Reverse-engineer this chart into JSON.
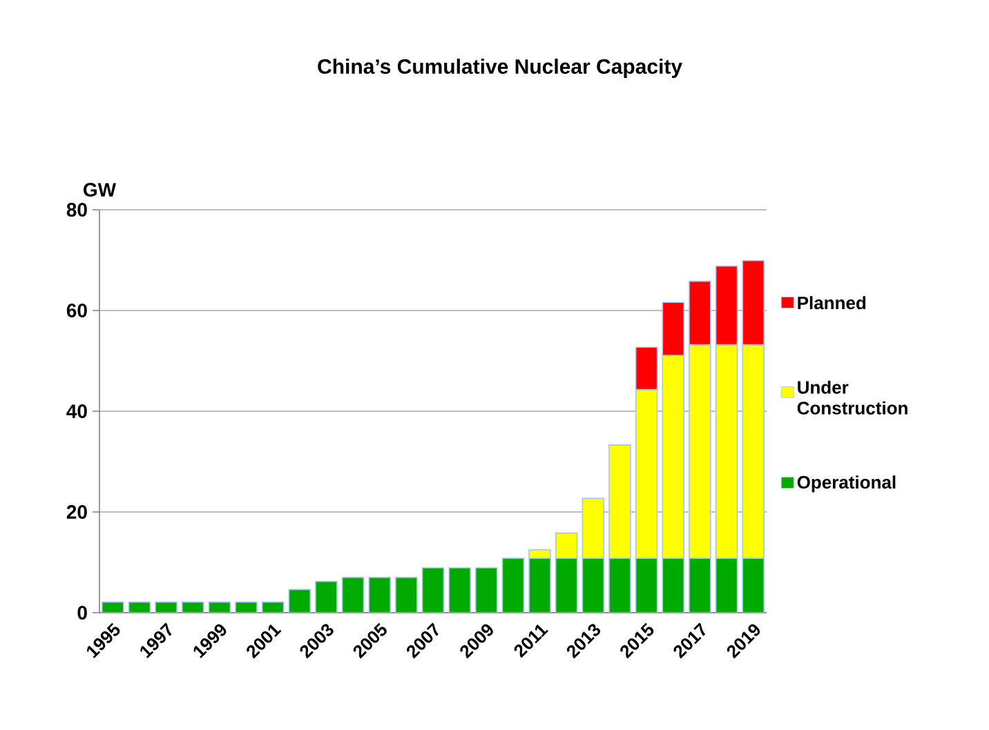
{
  "chart_data": {
    "type": "bar",
    "stacked": true,
    "title": "China’s Cumulative Nuclear Capacity",
    "ylabel": "GW",
    "categories": [
      "1995",
      null,
      "1997",
      null,
      "1999",
      null,
      "2001",
      null,
      "2003",
      null,
      "2005",
      null,
      "2007",
      null,
      "2009",
      null,
      "2011",
      null,
      "2013",
      null,
      "2015",
      null,
      "2017",
      null,
      "2019"
    ],
    "series": [
      {
        "name": "Operational",
        "color": "#00aa00",
        "values": [
          2.1,
          2.1,
          2.1,
          2.1,
          2.1,
          2.1,
          2.1,
          4.6,
          6.2,
          7.0,
          7.0,
          7.0,
          8.9,
          8.9,
          8.9,
          10.8,
          10.8,
          10.8,
          10.8,
          10.8,
          10.8,
          10.8,
          10.8,
          10.8,
          10.8
        ]
      },
      {
        "name": "Under Construction",
        "color": "#ffff00",
        "values": [
          null,
          null,
          null,
          null,
          null,
          null,
          null,
          null,
          null,
          null,
          null,
          null,
          null,
          null,
          null,
          null,
          1.7,
          5.0,
          11.9,
          22.5,
          33.5,
          40.3,
          42.4,
          42.4,
          42.4
        ]
      },
      {
        "name": "Planned",
        "color": "#ff0000",
        "values": [
          null,
          null,
          null,
          null,
          null,
          null,
          null,
          null,
          null,
          null,
          null,
          null,
          null,
          null,
          null,
          null,
          null,
          null,
          null,
          null,
          8.4,
          10.5,
          12.6,
          15.6,
          16.7
        ]
      }
    ],
    "ylim": [
      0,
      80
    ],
    "yticks": [
      0,
      20,
      40,
      60,
      80
    ],
    "grid": "y",
    "legend": "right"
  }
}
